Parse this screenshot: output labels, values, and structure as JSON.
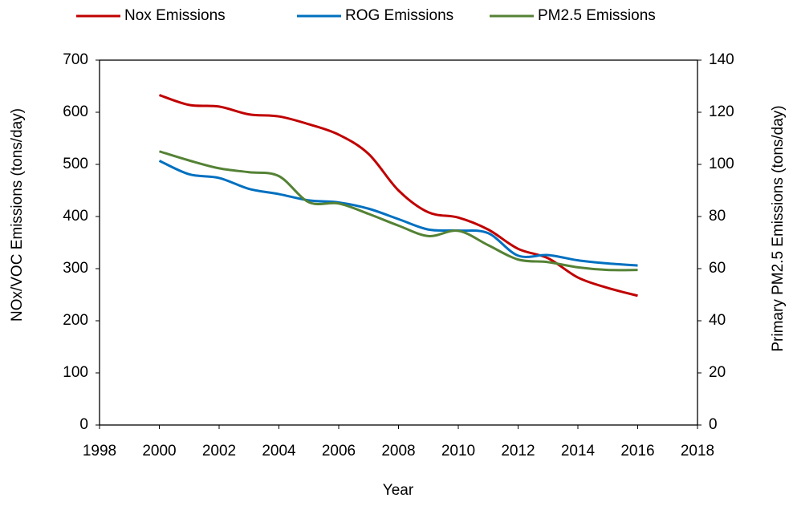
{
  "chart_data": {
    "type": "line",
    "x_label": "Year",
    "y_label": "NOx/VOC Emissions (tons/day)",
    "y2_label": "Primary PM2.5 Emissions (tons/day)",
    "x": [
      2000,
      2001,
      2002,
      2003,
      2004,
      2005,
      2006,
      2007,
      2008,
      2009,
      2010,
      2011,
      2012,
      2013,
      2014,
      2015,
      2016
    ],
    "series": [
      {
        "name": "Nox Emissions",
        "color": "#c00000",
        "values": [
          633,
          614,
          611,
          596,
          592,
          577,
          557,
          520,
          450,
          408,
          398,
          375,
          338,
          320,
          283,
          263,
          248
        ]
      },
      {
        "name": "ROG Emissions",
        "color": "#0070c0",
        "values": [
          507,
          481,
          474,
          453,
          443,
          431,
          427,
          415,
          395,
          375,
          373,
          368,
          325,
          326,
          316,
          310,
          306
        ]
      },
      {
        "name": "PM2.5 Emissions",
        "color": "#548235",
        "axis": "y2",
        "values": [
          105,
          101.5,
          98.5,
          97,
          95.5,
          85.5,
          85,
          81,
          76.5,
          72.5,
          74.5,
          69,
          63.5,
          62.5,
          60.5,
          59.5,
          59.5
        ]
      }
    ],
    "xlim": [
      1998,
      2018
    ],
    "xticks": [
      1998,
      2000,
      2002,
      2004,
      2006,
      2008,
      2010,
      2012,
      2014,
      2016,
      2018
    ],
    "ylim": [
      0,
      700
    ],
    "yticks": [
      0,
      100,
      200,
      300,
      400,
      500,
      600,
      700
    ],
    "y2lim": [
      0,
      140
    ],
    "y2ticks": [
      0,
      20,
      40,
      60,
      80,
      100,
      120,
      140
    ],
    "smooth": true
  }
}
